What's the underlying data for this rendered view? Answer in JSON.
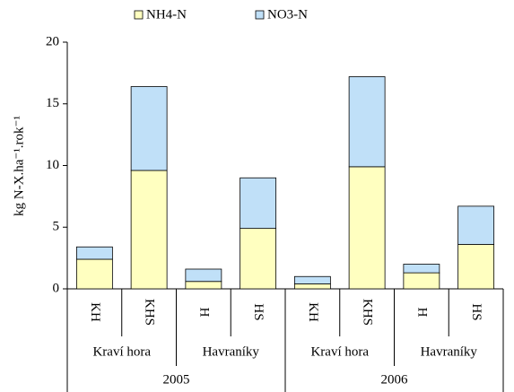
{
  "chart_data": {
    "type": "stacked_bar",
    "y_label": "kg N-X.ha⁻¹.rok⁻¹",
    "categories": [
      "KH",
      "KHS",
      "H",
      "HS",
      "KH",
      "KHS",
      "H",
      "HS"
    ],
    "sites": [
      "Kraví hora",
      "Havraníky",
      "Kraví hora",
      "Havraníky"
    ],
    "years": [
      "2005",
      "2006"
    ],
    "series": [
      {
        "name": "NH4-N",
        "color": "#ffffc0",
        "values": [
          2.4,
          9.6,
          0.6,
          4.9,
          0.4,
          9.9,
          1.3,
          3.6
        ]
      },
      {
        "name": "NO3-N",
        "color": "#c0e0f8",
        "values": [
          1.0,
          6.8,
          1.0,
          4.1,
          0.6,
          7.3,
          0.7,
          3.1
        ]
      }
    ],
    "ylim": [
      0,
      20
    ],
    "yticks": [
      0,
      5,
      10,
      15,
      20
    ],
    "legend": "top"
  }
}
